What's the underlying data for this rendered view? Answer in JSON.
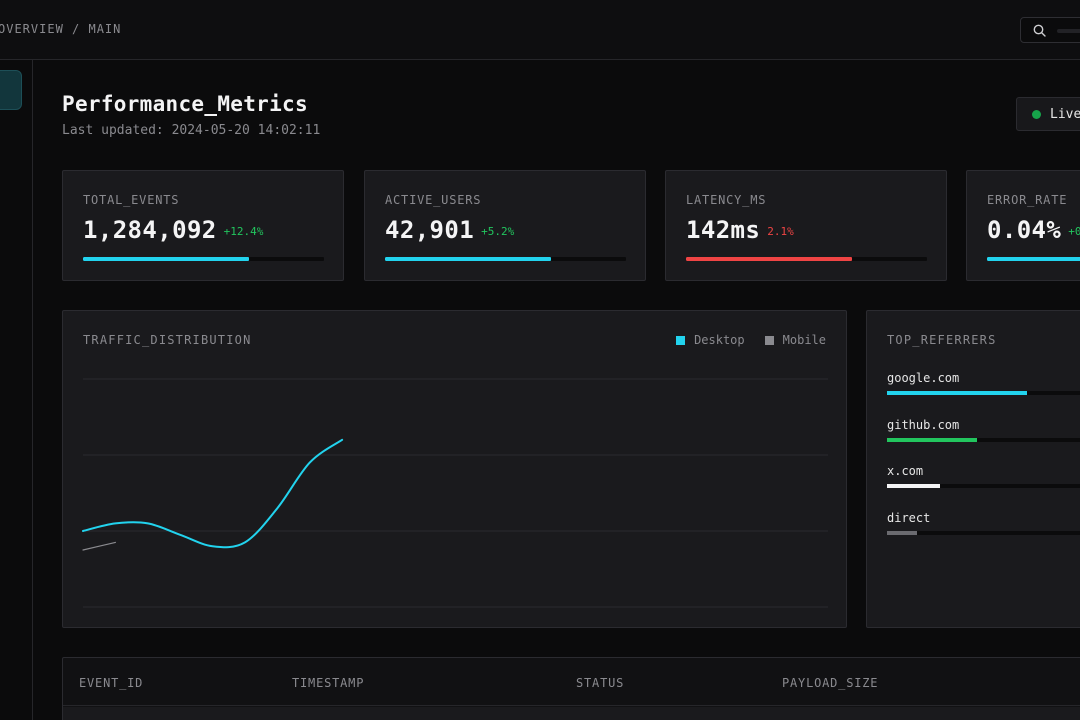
{
  "topbar": {
    "breadcrumb": "OVERVIEW / MAIN"
  },
  "header": {
    "title": "Performance_Metrics",
    "last_updated": "Last updated: 2024-05-20 14:02:11",
    "status_label": "Live"
  },
  "kpis": [
    {
      "label": "TOTAL_EVENTS",
      "value": "1,284,092",
      "delta": "+12.4%",
      "delta_color": "#22c55e",
      "bar_color": "#22d3ee",
      "progress": 0.69
    },
    {
      "label": "ACTIVE_USERS",
      "value": "42,901",
      "delta": "+5.2%",
      "delta_color": "#22c55e",
      "bar_color": "#22d3ee",
      "progress": 0.69
    },
    {
      "label": "LATENCY_MS",
      "value": "142ms",
      "delta": "2.1%",
      "delta_color": "#ef4444",
      "bar_color": "#ef4444",
      "progress": 0.69
    },
    {
      "label": "ERROR_RATE",
      "value": "0.04%",
      "delta": "+0",
      "delta_color": "#22c55e",
      "bar_color": "#22d3ee",
      "progress": 0.69
    }
  ],
  "traffic": {
    "title": "TRAFFIC_DISTRIBUTION",
    "legend": [
      {
        "name": "Desktop",
        "color": "#22d3ee"
      },
      {
        "name": "Mobile",
        "color": "#8a8a8f"
      }
    ]
  },
  "chart_data": {
    "type": "line",
    "title": "TRAFFIC_DISTRIBUTION",
    "grid": true,
    "legend_position": "top-right",
    "series": [
      {
        "name": "Desktop",
        "color": "#22d3ee",
        "x": [
          0,
          0.5,
          1,
          1.5,
          2,
          2.5,
          3,
          3.5,
          4
        ],
        "y": [
          1.0,
          1.1,
          1.1,
          0.95,
          0.8,
          0.85,
          1.3,
          1.9,
          2.2
        ]
      },
      {
        "name": "Mobile",
        "color": "#8a8a8f",
        "x": [
          0,
          0.5
        ],
        "y": [
          0.75,
          0.85
        ]
      }
    ],
    "xlim": [
      0,
      11.5
    ],
    "ylim": [
      0,
      3
    ]
  },
  "referrers": {
    "title": "TOP_REFERRERS",
    "items": [
      {
        "name": "google.com",
        "share": 0.61,
        "color": "#22d3ee"
      },
      {
        "name": "github.com",
        "share": 0.39,
        "color": "#22c55e"
      },
      {
        "name": "x.com",
        "share": 0.23,
        "color": "#f4f4f5"
      },
      {
        "name": "direct",
        "share": 0.13,
        "color": "#6b6b70"
      }
    ]
  },
  "table": {
    "columns": [
      "EVENT_ID",
      "TIMESTAMP",
      "STATUS",
      "PAYLOAD_SIZE"
    ]
  }
}
